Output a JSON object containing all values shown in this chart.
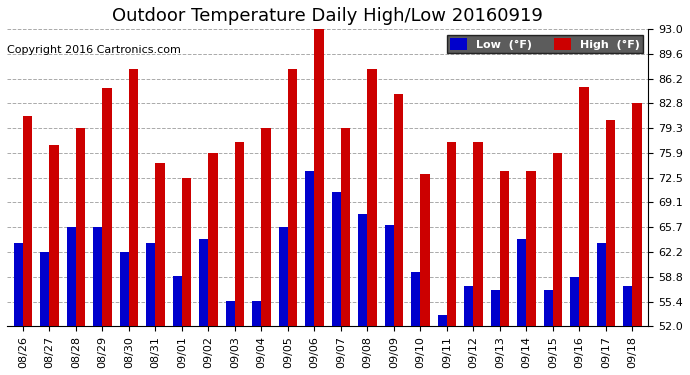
{
  "title": "Outdoor Temperature Daily High/Low 20160919",
  "copyright": "Copyright 2016 Cartronics.com",
  "dates": [
    "08/26",
    "08/27",
    "08/28",
    "08/29",
    "08/30",
    "08/31",
    "09/01",
    "09/02",
    "09/03",
    "09/04",
    "09/05",
    "09/06",
    "09/07",
    "09/08",
    "09/09",
    "09/10",
    "09/11",
    "09/12",
    "09/13",
    "09/14",
    "09/15",
    "09/16",
    "09/17",
    "09/18"
  ],
  "highs": [
    81.0,
    77.0,
    79.3,
    84.9,
    87.5,
    74.5,
    72.5,
    75.9,
    77.5,
    79.3,
    87.5,
    93.0,
    79.3,
    87.5,
    84.0,
    73.0,
    77.5,
    77.5,
    73.5,
    73.5,
    75.9,
    85.0,
    80.5,
    82.8
  ],
  "lows": [
    63.5,
    62.2,
    65.7,
    65.7,
    62.2,
    63.5,
    59.0,
    64.0,
    55.5,
    55.5,
    65.7,
    73.5,
    70.5,
    67.5,
    66.0,
    59.5,
    53.5,
    57.5,
    57.0,
    64.0,
    57.0,
    58.8,
    63.5,
    57.5
  ],
  "ymin": 52.0,
  "ymax": 93.0,
  "yticks": [
    52.0,
    55.4,
    58.8,
    62.2,
    65.7,
    69.1,
    72.5,
    75.9,
    79.3,
    82.8,
    86.2,
    89.6,
    93.0
  ],
  "bar_width": 0.35,
  "low_color": "#0000cc",
  "high_color": "#cc0000",
  "bg_color": "#ffffff",
  "grid_color": "#aaaaaa",
  "legend_low_bg": "#0000cc",
  "legend_high_bg": "#cc0000",
  "legend_low_label": "Low  (°F)",
  "legend_high_label": "High  (°F)",
  "title_fontsize": 13,
  "tick_fontsize": 8,
  "copyright_fontsize": 8
}
